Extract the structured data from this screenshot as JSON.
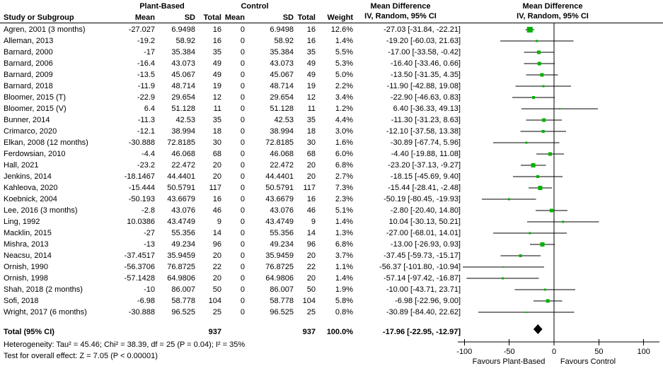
{
  "header": {
    "group_plant": "Plant-Based",
    "group_control": "Control",
    "md_text_header": {
      "line1": "Mean Difference",
      "line2": "IV, Random, 95% CI"
    },
    "md_plot_header": {
      "line1": "Mean Difference",
      "line2": "IV, Random, 95% CI"
    },
    "columns": {
      "study": "Study or Subgroup",
      "mean": "Mean",
      "sd": "SD",
      "total": "Total",
      "weight": "Weight"
    }
  },
  "chart_data": {
    "type": "forest",
    "effect_measure": "Mean Difference IV, Random, 95% CI",
    "marker_color": "#00b200",
    "diamond_color": "#000000",
    "axis": {
      "ticks": [
        -100,
        -50,
        0,
        50,
        100
      ],
      "tick_labels": [
        "-100",
        "-50",
        "0",
        "50",
        "100"
      ],
      "favours_left": "Favours Plant-Based",
      "favours_right": "Favours Control"
    },
    "studies": [
      {
        "name": "Agren, 2001 (3 months)",
        "mean1": "-27.027",
        "sd1": "6.9498",
        "n1": "16",
        "mean2": "0",
        "sd2": "6.9498",
        "n2": "16",
        "weight": "12.6%",
        "w": 12.6,
        "est": -27.03,
        "lo": -31.84,
        "hi": -22.21,
        "ci": "-27.03 [-31.84, -22.21]"
      },
      {
        "name": "Alleman, 2013",
        "mean1": "-19.2",
        "sd1": "58.92",
        "n1": "16",
        "mean2": "0",
        "sd2": "58.92",
        "n2": "16",
        "weight": "1.4%",
        "w": 1.4,
        "est": -19.2,
        "lo": -60.03,
        "hi": 21.63,
        "ci": "-19.20 [-60.03, 21.63]"
      },
      {
        "name": "Barnard, 2000",
        "mean1": "-17",
        "sd1": "35.384",
        "n1": "35",
        "mean2": "0",
        "sd2": "35.384",
        "n2": "35",
        "weight": "5.5%",
        "w": 5.5,
        "est": -17.0,
        "lo": -33.58,
        "hi": -0.42,
        "ci": "-17.00 [-33.58, -0.42]"
      },
      {
        "name": "Barnard, 2006",
        "mean1": "-16.4",
        "sd1": "43.073",
        "n1": "49",
        "mean2": "0",
        "sd2": "43.073",
        "n2": "49",
        "weight": "5.3%",
        "w": 5.3,
        "est": -16.4,
        "lo": -33.46,
        "hi": 0.66,
        "ci": "-16.40 [-33.46, 0.66]"
      },
      {
        "name": "Barnard, 2009",
        "mean1": "-13.5",
        "sd1": "45.067",
        "n1": "49",
        "mean2": "0",
        "sd2": "45.067",
        "n2": "49",
        "weight": "5.0%",
        "w": 5.0,
        "est": -13.5,
        "lo": -31.35,
        "hi": 4.35,
        "ci": "-13.50 [-31.35, 4.35]"
      },
      {
        "name": "Barnard, 2018",
        "mean1": "-11.9",
        "sd1": "48.714",
        "n1": "19",
        "mean2": "0",
        "sd2": "48.714",
        "n2": "19",
        "weight": "2.2%",
        "w": 2.2,
        "est": -11.9,
        "lo": -42.88,
        "hi": 19.08,
        "ci": "-11.90 [-42.88, 19.08]"
      },
      {
        "name": "Bloomer, 2015 (T)",
        "mean1": "-22.9",
        "sd1": "29.654",
        "n1": "12",
        "mean2": "0",
        "sd2": "29.654",
        "n2": "12",
        "weight": "3.4%",
        "w": 3.4,
        "est": -22.9,
        "lo": -46.63,
        "hi": 0.83,
        "ci": "-22.90 [-46.63, 0.83]"
      },
      {
        "name": "Bloomer, 2015 (V)",
        "mean1": "6.4",
        "sd1": "51.128",
        "n1": "11",
        "mean2": "0",
        "sd2": "51.128",
        "n2": "11",
        "weight": "1.2%",
        "w": 1.2,
        "est": 6.4,
        "lo": -36.33,
        "hi": 49.13,
        "ci": "6.40 [-36.33, 49.13]"
      },
      {
        "name": "Bunner, 2014",
        "mean1": "-11.3",
        "sd1": "42.53",
        "n1": "35",
        "mean2": "0",
        "sd2": "42.53",
        "n2": "35",
        "weight": "4.4%",
        "w": 4.4,
        "est": -11.3,
        "lo": -31.23,
        "hi": 8.63,
        "ci": "-11.30 [-31.23, 8.63]"
      },
      {
        "name": "Crimarco, 2020",
        "mean1": "-12.1",
        "sd1": "38.994",
        "n1": "18",
        "mean2": "0",
        "sd2": "38.994",
        "n2": "18",
        "weight": "3.0%",
        "w": 3.0,
        "est": -12.1,
        "lo": -37.58,
        "hi": 13.38,
        "ci": "-12.10 [-37.58, 13.38]"
      },
      {
        "name": "Elkan, 2008 (12 months)",
        "mean1": "-30.888",
        "sd1": "72.8185",
        "n1": "30",
        "mean2": "0",
        "sd2": "72.8185",
        "n2": "30",
        "weight": "1.6%",
        "w": 1.6,
        "est": -30.89,
        "lo": -67.74,
        "hi": 5.96,
        "ci": "-30.89 [-67.74, 5.96]"
      },
      {
        "name": "Ferdowsian, 2010",
        "mean1": "-4.4",
        "sd1": "46.068",
        "n1": "68",
        "mean2": "0",
        "sd2": "46.068",
        "n2": "68",
        "weight": "6.0%",
        "w": 6.0,
        "est": -4.4,
        "lo": -19.88,
        "hi": 11.08,
        "ci": "-4.40 [-19.88, 11.08]"
      },
      {
        "name": "Hall, 2021",
        "mean1": "-23.2",
        "sd1": "22.472",
        "n1": "20",
        "mean2": "0",
        "sd2": "22.472",
        "n2": "20",
        "weight": "6.8%",
        "w": 6.8,
        "est": -23.2,
        "lo": -37.13,
        "hi": -9.27,
        "ci": "-23.20 [-37.13, -9.27]"
      },
      {
        "name": "Jenkins, 2014",
        "mean1": "-18.1467",
        "sd1": "44.4401",
        "n1": "20",
        "mean2": "0",
        "sd2": "44.4401",
        "n2": "20",
        "weight": "2.7%",
        "w": 2.7,
        "est": -18.15,
        "lo": -45.69,
        "hi": 9.4,
        "ci": "-18.15 [-45.69, 9.40]"
      },
      {
        "name": "Kahleova, 2020",
        "mean1": "-15.444",
        "sd1": "50.5791",
        "n1": "117",
        "mean2": "0",
        "sd2": "50.5791",
        "n2": "117",
        "weight": "7.3%",
        "w": 7.3,
        "est": -15.44,
        "lo": -28.41,
        "hi": -2.48,
        "ci": "-15.44 [-28.41, -2.48]"
      },
      {
        "name": "Koebnick, 2004",
        "mean1": "-50.193",
        "sd1": "43.6679",
        "n1": "16",
        "mean2": "0",
        "sd2": "43.6679",
        "n2": "16",
        "weight": "2.3%",
        "w": 2.3,
        "est": -50.19,
        "lo": -80.45,
        "hi": -19.93,
        "ci": "-50.19 [-80.45, -19.93]"
      },
      {
        "name": "Lee, 2016 (3 months)",
        "mean1": "-2.8",
        "sd1": "43.076",
        "n1": "46",
        "mean2": "0",
        "sd2": "43.076",
        "n2": "46",
        "weight": "5.1%",
        "w": 5.1,
        "est": -2.8,
        "lo": -20.4,
        "hi": 14.8,
        "ci": "-2.80 [-20.40, 14.80]"
      },
      {
        "name": "Ling, 1992",
        "mean1": "10.0386",
        "sd1": "43.4749",
        "n1": "9",
        "mean2": "0",
        "sd2": "43.4749",
        "n2": "9",
        "weight": "1.4%",
        "w": 1.4,
        "est": 10.04,
        "lo": -30.13,
        "hi": 50.21,
        "ci": "10.04 [-30.13, 50.21]"
      },
      {
        "name": "Macklin, 2015",
        "mean1": "-27",
        "sd1": "55.356",
        "n1": "14",
        "mean2": "0",
        "sd2": "55.356",
        "n2": "14",
        "weight": "1.3%",
        "w": 1.3,
        "est": -27.0,
        "lo": -68.01,
        "hi": 14.01,
        "ci": "-27.00 [-68.01, 14.01]"
      },
      {
        "name": "Mishra, 2013",
        "mean1": "-13",
        "sd1": "49.234",
        "n1": "96",
        "mean2": "0",
        "sd2": "49.234",
        "n2": "96",
        "weight": "6.8%",
        "w": 6.8,
        "est": -13.0,
        "lo": -26.93,
        "hi": 0.93,
        "ci": "-13.00 [-26.93, 0.93]"
      },
      {
        "name": "Neacsu, 2014",
        "mean1": "-37.4517",
        "sd1": "35.9459",
        "n1": "20",
        "mean2": "0",
        "sd2": "35.9459",
        "n2": "20",
        "weight": "3.7%",
        "w": 3.7,
        "est": -37.45,
        "lo": -59.73,
        "hi": -15.17,
        "ci": "-37.45 [-59.73, -15.17]"
      },
      {
        "name": "Ornish, 1990",
        "mean1": "-56.3706",
        "sd1": "76.8725",
        "n1": "22",
        "mean2": "0",
        "sd2": "76.8725",
        "n2": "22",
        "weight": "1.1%",
        "w": 1.1,
        "est": -56.37,
        "lo": -101.8,
        "hi": -10.94,
        "ci": "-56.37 [-101.80, -10.94]"
      },
      {
        "name": "Ornish, 1998",
        "mean1": "-57.1428",
        "sd1": "64.9806",
        "n1": "20",
        "mean2": "0",
        "sd2": "64.9806",
        "n2": "20",
        "weight": "1.4%",
        "w": 1.4,
        "est": -57.14,
        "lo": -97.42,
        "hi": -16.87,
        "ci": "-57.14 [-97.42, -16.87]"
      },
      {
        "name": "Shah, 2018 (2 months)",
        "mean1": "-10",
        "sd1": "86.007",
        "n1": "50",
        "mean2": "0",
        "sd2": "86.007",
        "n2": "50",
        "weight": "1.9%",
        "w": 1.9,
        "est": -10.0,
        "lo": -43.71,
        "hi": 23.71,
        "ci": "-10.00 [-43.71, 23.71]"
      },
      {
        "name": "Sofi, 2018",
        "mean1": "-6.98",
        "sd1": "58.778",
        "n1": "104",
        "mean2": "0",
        "sd2": "58.778",
        "n2": "104",
        "weight": "5.8%",
        "w": 5.8,
        "est": -6.98,
        "lo": -22.96,
        "hi": 9.0,
        "ci": "-6.98 [-22.96, 9.00]"
      },
      {
        "name": "Wright, 2017 (6 months)",
        "mean1": "-30.888",
        "sd1": "96.525",
        "n1": "25",
        "mean2": "0",
        "sd2": "96.525",
        "n2": "25",
        "weight": "0.8%",
        "w": 0.8,
        "est": -30.89,
        "lo": -84.4,
        "hi": 22.62,
        "ci": "-30.89 [-84.40, 22.62]"
      }
    ],
    "total": {
      "label": "Total (95% CI)",
      "n1": "937",
      "n2": "937",
      "weight": "100.0%",
      "est": -17.96,
      "lo": -22.95,
      "hi": -12.97,
      "ci": "-17.96 [-22.95, -12.97]"
    },
    "footnotes": {
      "heterogeneity": "Heterogeneity: Tau² = 45.46; Chi² = 38.39, df = 25 (P = 0.04); I² = 35%",
      "overall_effect": "Test for overall effect: Z = 7.05 (P < 0.00001)"
    }
  }
}
